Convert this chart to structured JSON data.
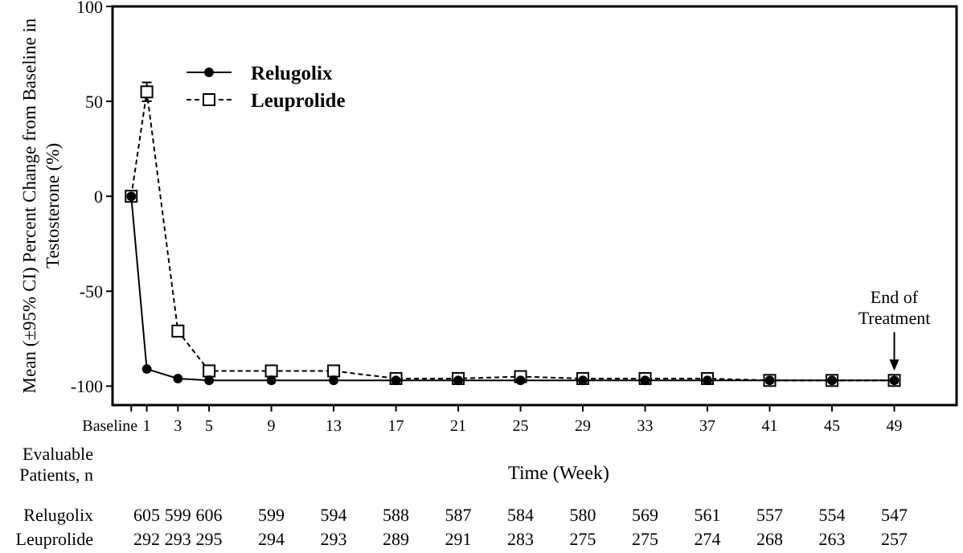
{
  "chart_data": {
    "type": "line",
    "xlabel": "Time (Week)",
    "ylabel": "Mean (±95% CI) Percent Change from Baseline in Testosterone (%)",
    "x": [
      0,
      1,
      3,
      5,
      9,
      13,
      17,
      21,
      25,
      29,
      33,
      37,
      41,
      45,
      49
    ],
    "xlim": [
      -1.2,
      53
    ],
    "xticks": [
      {
        "value": 0,
        "label": null
      },
      1,
      3,
      5,
      9,
      13,
      17,
      21,
      25,
      29,
      33,
      37,
      41,
      45,
      49
    ],
    "ylim": [
      -110,
      100
    ],
    "yticks": [
      -100,
      -50,
      0,
      50,
      100
    ],
    "series": [
      {
        "name": "Relugolix",
        "color": "#000000",
        "marker": "circle",
        "line_style": "solid",
        "values": [
          0,
          -91,
          -96,
          -97,
          -97,
          -97,
          -97,
          -97,
          -97,
          -97,
          -97,
          -97,
          -97,
          -97,
          -97
        ]
      },
      {
        "name": "Leuprolide",
        "color": "#000000",
        "marker": "square",
        "line_style": "dashed",
        "values": [
          0,
          55,
          -71,
          -92,
          -92,
          -92,
          -96,
          -96,
          -95,
          -96,
          -96,
          -96,
          -97,
          -97,
          -97
        ],
        "errors": [
          null,
          5,
          null,
          null,
          null,
          null,
          null,
          null,
          null,
          null,
          null,
          null,
          null,
          null,
          null
        ]
      }
    ],
    "legend": "top left",
    "grid": false,
    "annotations": [
      {
        "text": "End of Treatment",
        "x": 49,
        "y": -97
      },
      "Baseline",
      "Evaluable Patients, n",
      "605 599 606 599 594 588 587 584 580 569 561 557 554 547",
      "292 293 295 294 293 289 291 283 275 275 274 268 263 257"
    ]
  }
}
